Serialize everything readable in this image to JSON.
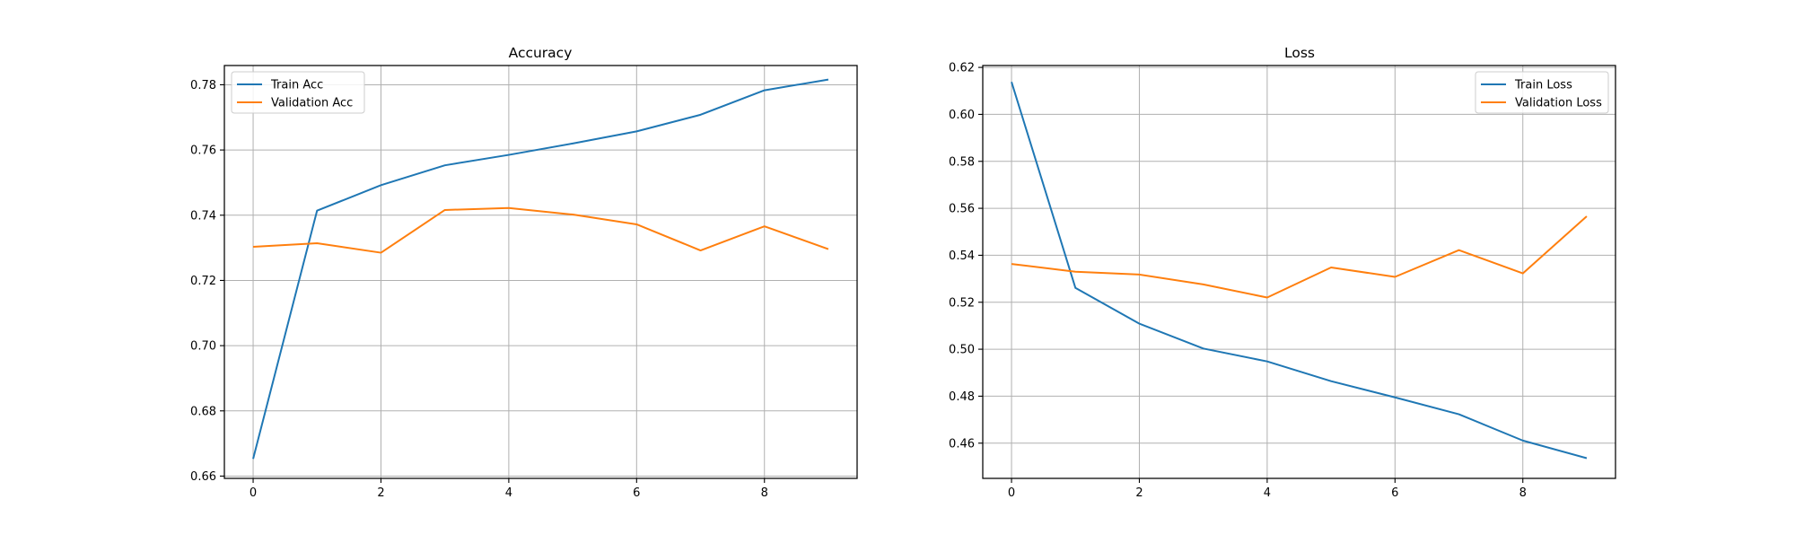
{
  "chart_data": [
    {
      "type": "line",
      "title": "Accuracy",
      "xlabel": "",
      "ylabel": "",
      "xlim": [
        -0.45,
        9.45
      ],
      "ylim": [
        0.6593,
        0.7859
      ],
      "xticks": [
        0,
        2,
        4,
        6,
        8
      ],
      "yticks": [
        0.66,
        0.68,
        0.7,
        0.72,
        0.74,
        0.76,
        0.78
      ],
      "yticks_labels": [
        "0.66",
        "0.68",
        "0.70",
        "0.72",
        "0.74",
        "0.76",
        "0.78"
      ],
      "grid": true,
      "legend_position": "upper-left",
      "x": [
        0,
        1,
        2,
        3,
        4,
        5,
        6,
        7,
        8,
        9
      ],
      "series": [
        {
          "name": "Train Acc",
          "color": "#1f77b4",
          "values": [
            0.6653,
            0.7414,
            0.7492,
            0.7553,
            0.7585,
            0.762,
            0.7657,
            0.7708,
            0.7783,
            0.7816
          ]
        },
        {
          "name": "Validation Acc",
          "color": "#ff7f0e",
          "values": [
            0.7303,
            0.7314,
            0.7285,
            0.7416,
            0.7422,
            0.7402,
            0.7372,
            0.7292,
            0.7366,
            0.7296
          ]
        }
      ]
    },
    {
      "type": "line",
      "title": "Loss",
      "xlabel": "",
      "ylabel": "",
      "xlim": [
        -0.45,
        9.45
      ],
      "ylim": [
        0.445,
        0.6208
      ],
      "xticks": [
        0,
        2,
        4,
        6,
        8
      ],
      "yticks": [
        0.46,
        0.48,
        0.5,
        0.52,
        0.54,
        0.56,
        0.58,
        0.6,
        0.62
      ],
      "yticks_labels": [
        "0.46",
        "0.48",
        "0.50",
        "0.52",
        "0.54",
        "0.56",
        "0.58",
        "0.60",
        "0.62"
      ],
      "grid": true,
      "legend_position": "upper-right",
      "x": [
        0,
        1,
        2,
        3,
        4,
        5,
        6,
        7,
        8,
        9
      ],
      "series": [
        {
          "name": "Train Loss",
          "color": "#1f77b4",
          "values": [
            0.6138,
            0.5261,
            0.5109,
            0.5003,
            0.4948,
            0.4864,
            0.4795,
            0.4723,
            0.4611,
            0.4536
          ]
        },
        {
          "name": "Validation Loss",
          "color": "#ff7f0e",
          "values": [
            0.5363,
            0.533,
            0.5318,
            0.5276,
            0.522,
            0.5348,
            0.5308,
            0.5422,
            0.5323,
            0.5566
          ]
        }
      ]
    }
  ]
}
